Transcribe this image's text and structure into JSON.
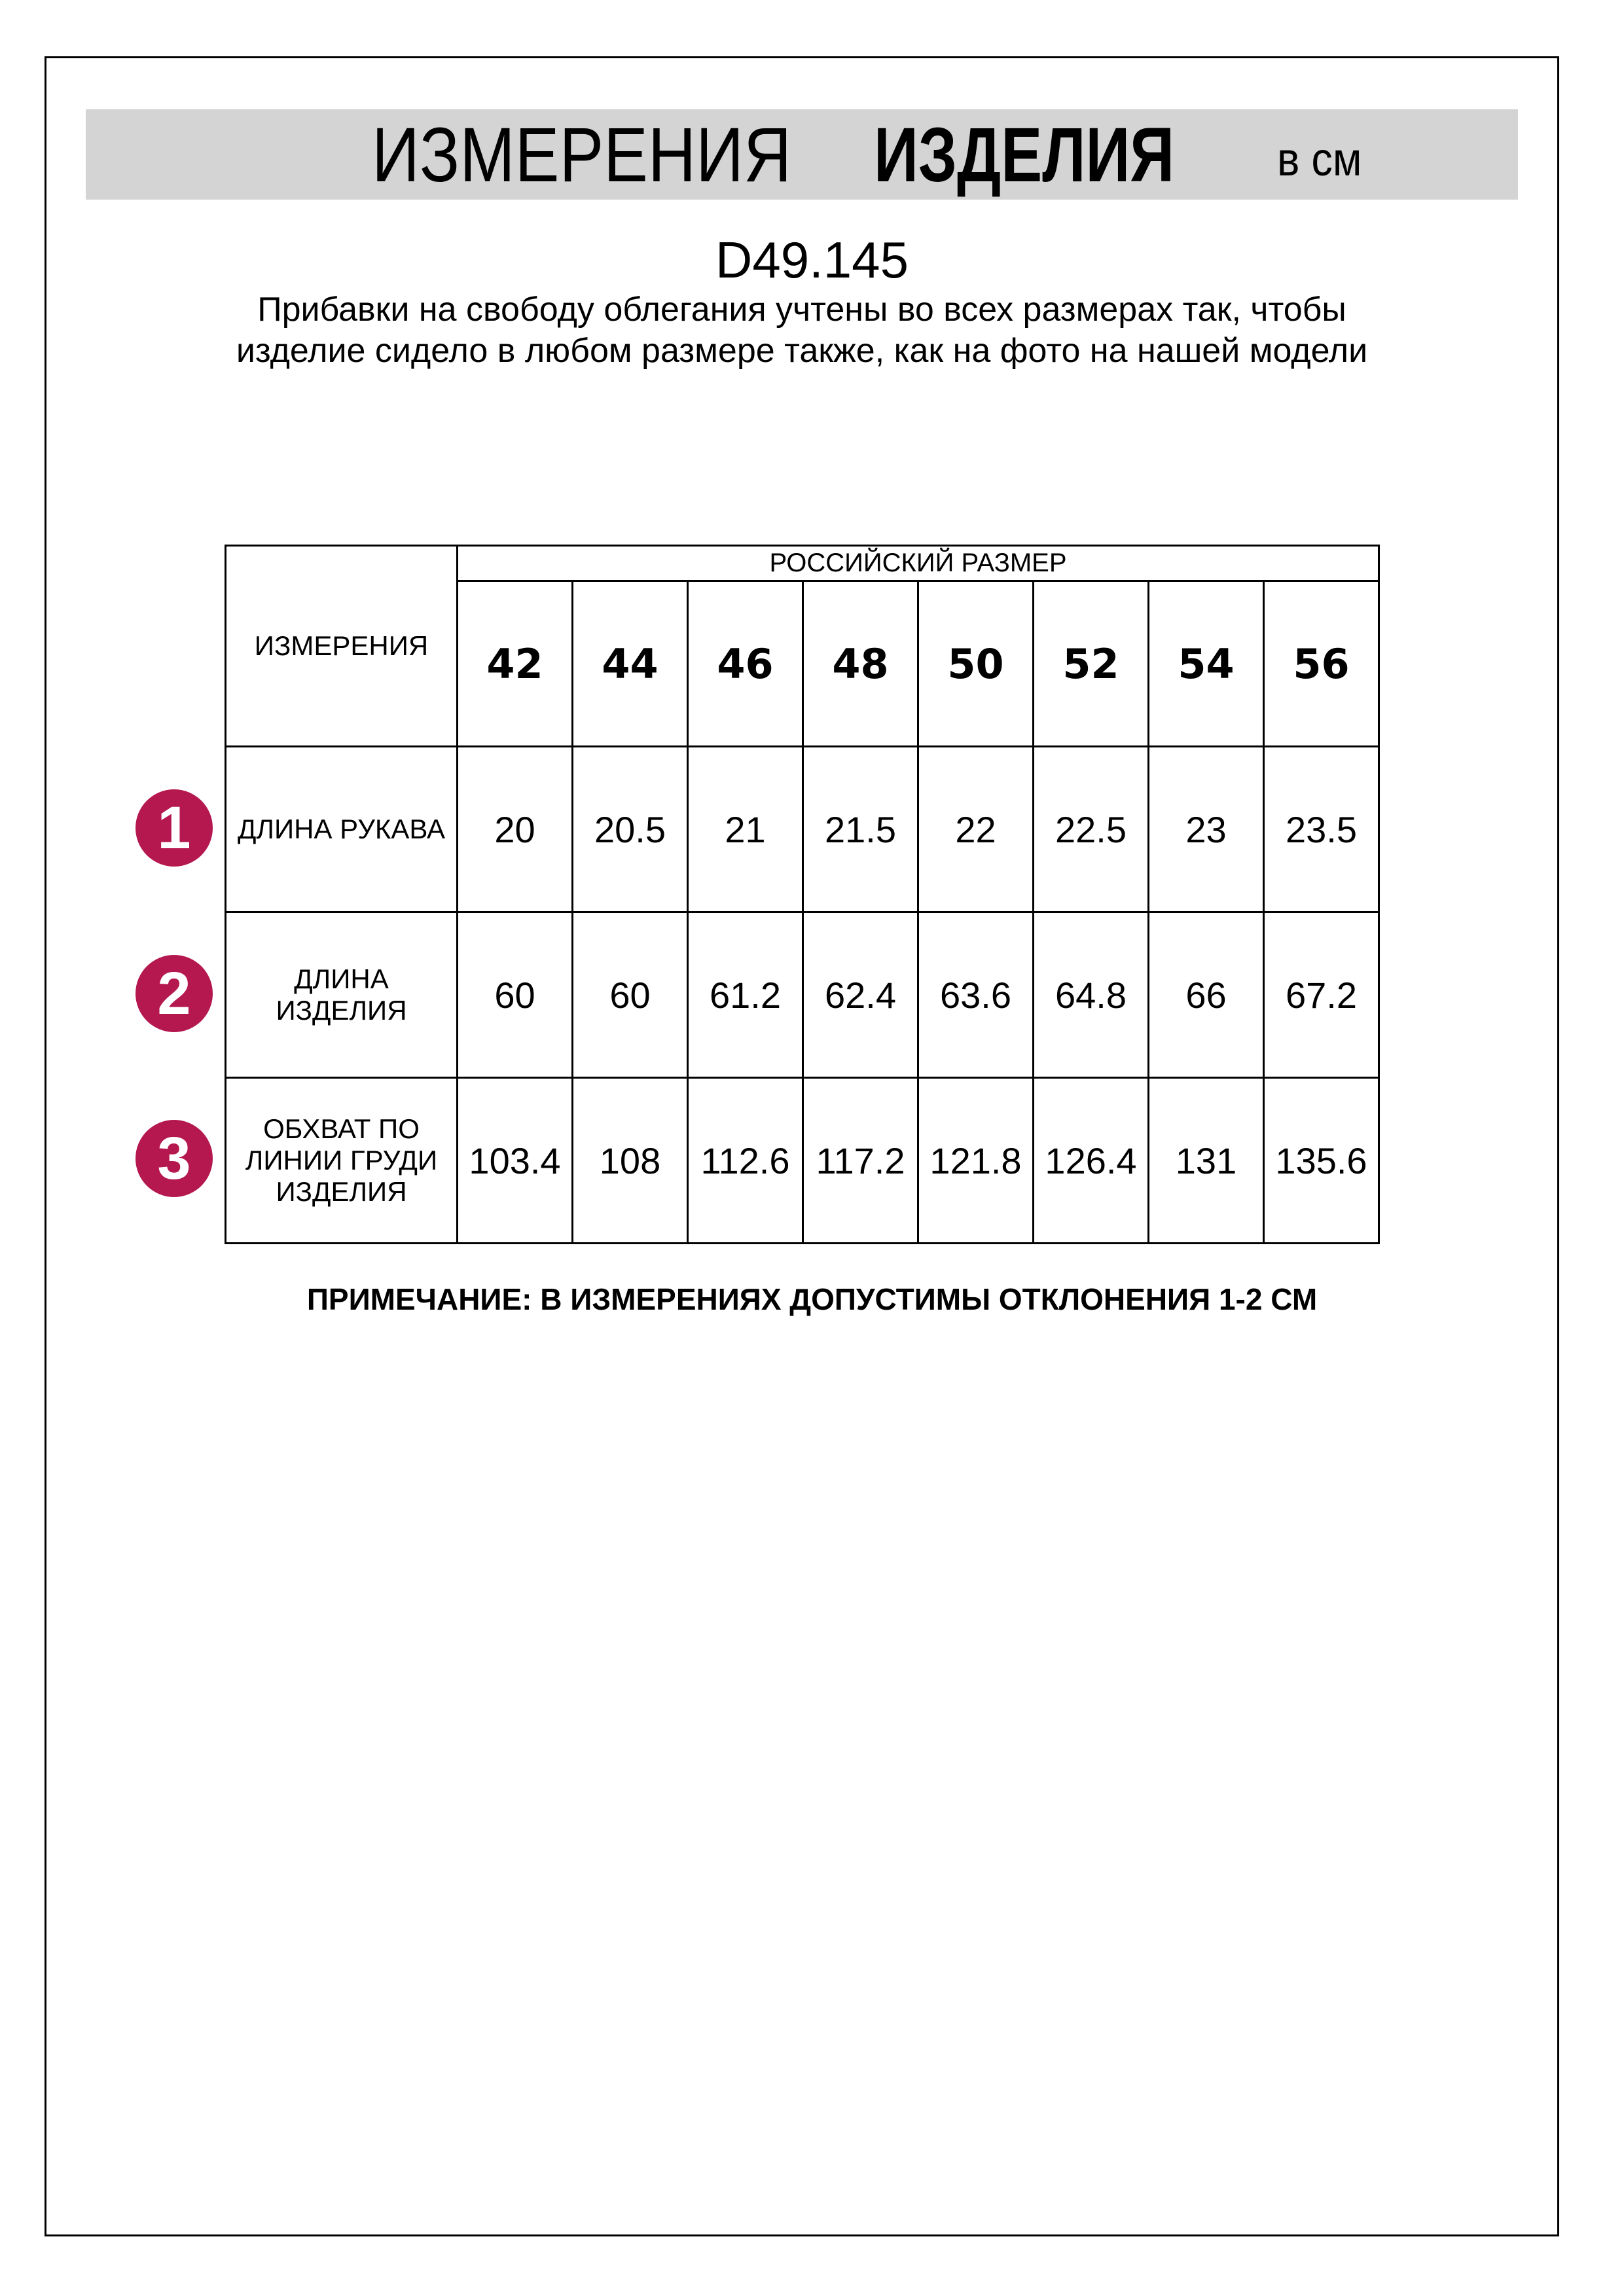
{
  "header": {
    "title_part1": "ИЗМЕРЕНИЯ",
    "title_part2": "ИЗДЕЛИЯ",
    "unit": "в см",
    "band_color": "#d4d4d4"
  },
  "product_code": "D49.145",
  "description": "Прибавки на свободу облегания учтены во всех размерах так, чтобы изделие сидело в любом размере также, как на фото на нашей модели",
  "table": {
    "corner_label": "ИЗМЕРЕНИЯ",
    "size_group_label": "РОССИЙСКИЙ РАЗМЕР",
    "sizes": [
      "42",
      "44",
      "46",
      "48",
      "50",
      "52",
      "54",
      "56"
    ],
    "rows": [
      {
        "number": "1",
        "label": "ДЛИНА РУКАВА",
        "values": [
          "20",
          "20.5",
          "21",
          "21.5",
          "22",
          "22.5",
          "23",
          "23.5"
        ]
      },
      {
        "number": "2",
        "label": "ДЛИНА ИЗДЕЛИЯ",
        "values": [
          "60",
          "60",
          "61.2",
          "62.4",
          "63.6",
          "64.8",
          "66",
          "67.2"
        ]
      },
      {
        "number": "3",
        "label": "ОБХВАТ ПО ЛИНИИ ГРУДИ ИЗДЕЛИЯ",
        "values": [
          "103.4",
          "108",
          "112.6",
          "117.2",
          "121.8",
          "126.4",
          "131",
          "135.6"
        ]
      }
    ],
    "marker_color": "#b5174f"
  },
  "note": "ПРИМЕЧАНИЕ: В ИЗМЕРЕНИЯХ ДОПУСТИМЫ ОТКЛОНЕНИЯ 1-2 СМ"
}
